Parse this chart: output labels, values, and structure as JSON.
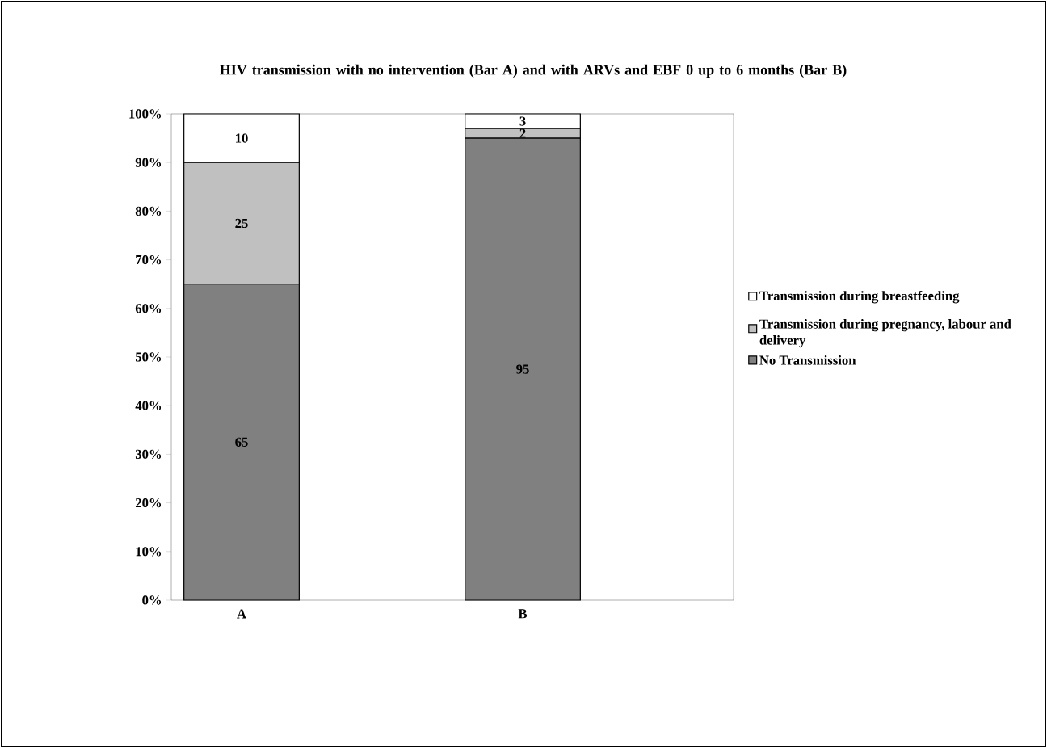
{
  "chart_data": {
    "type": "bar",
    "stacked": true,
    "title": "HIV transmission with no intervention (Bar A) and with ARVs and EBF 0 up to 6 months (Bar B)",
    "categories": [
      "A",
      null,
      "B",
      null
    ],
    "series": [
      {
        "name": "No Transmission",
        "color": "#808080",
        "values": [
          65,
          null,
          95,
          null
        ]
      },
      {
        "name": "Transmission during pregnancy, labour and delivery",
        "color": "#c0c0c0",
        "values": [
          25,
          null,
          2,
          null
        ]
      },
      {
        "name": "Transmission during breastfeeding",
        "color": "#ffffff",
        "values": [
          10,
          null,
          3,
          null
        ]
      }
    ],
    "ylim": [
      0,
      100
    ],
    "yticks": [
      {
        "value": 0,
        "label": "0%"
      },
      {
        "value": 10,
        "label": "10%"
      },
      {
        "value": 20,
        "label": "20%"
      },
      {
        "value": 30,
        "label": "30%"
      },
      {
        "value": 40,
        "label": "40%"
      },
      {
        "value": 50,
        "label": "50%"
      },
      {
        "value": 60,
        "label": "60%"
      },
      {
        "value": 70,
        "label": "70%"
      },
      {
        "value": 80,
        "label": "80%"
      },
      {
        "value": 90,
        "label": "90%"
      },
      {
        "value": 100,
        "label": "100%"
      }
    ],
    "data_labels": true,
    "grid": false,
    "legend": "right"
  }
}
